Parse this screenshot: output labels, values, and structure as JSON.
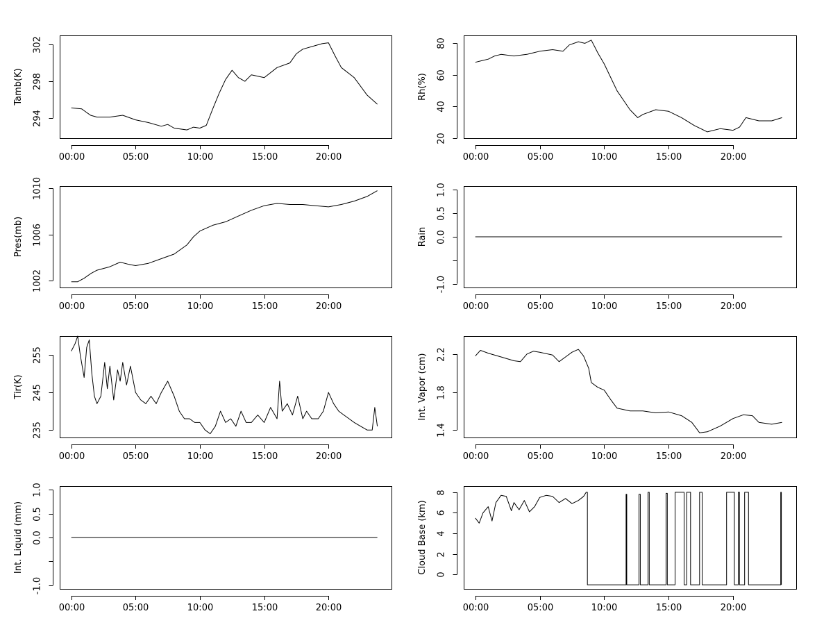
{
  "chart_data": [
    {
      "type": "line",
      "ylabel": "Tamb(K)",
      "xlabel": "",
      "x_ticks": [
        "00:00",
        "05:00",
        "10:00",
        "15:00",
        "20:00"
      ],
      "x_tick_hours": [
        0,
        5,
        10,
        15,
        20
      ],
      "xlim": [
        -0.9,
        24.9
      ],
      "ylim": [
        291.8,
        303
      ],
      "y_ticks": [
        294,
        298,
        302
      ],
      "y_tick_labels": [
        "294",
        "298",
        "302"
      ],
      "series": [
        {
          "name": "Tamb",
          "x": [
            0,
            0.8,
            1,
            1.5,
            2,
            3,
            4,
            5,
            6,
            7,
            7.5,
            8,
            9,
            9.5,
            10,
            10.5,
            11,
            11.5,
            12,
            12.5,
            13,
            13.5,
            14,
            15,
            16,
            17,
            17.5,
            18,
            19,
            19.5,
            20,
            20.5,
            21,
            22,
            23,
            23.8
          ],
          "y": [
            295.1,
            295.0,
            294.8,
            294.3,
            294.1,
            294.1,
            294.3,
            293.8,
            293.5,
            293.1,
            293.3,
            292.9,
            292.7,
            293.0,
            292.9,
            293.2,
            295.0,
            296.7,
            298.2,
            299.2,
            298.4,
            298.0,
            298.7,
            298.4,
            299.5,
            300.0,
            301.0,
            301.5,
            301.9,
            302.1,
            302.2,
            300.8,
            299.5,
            298.4,
            296.5,
            295.5
          ]
        }
      ]
    },
    {
      "type": "line",
      "ylabel": "Rh(%)",
      "xlabel": "",
      "x_ticks": [
        "00:00",
        "05:00",
        "10:00",
        "15:00",
        "20:00"
      ],
      "x_tick_hours": [
        0,
        5,
        10,
        15,
        20
      ],
      "xlim": [
        -0.9,
        24.9
      ],
      "ylim": [
        20,
        85
      ],
      "y_ticks": [
        20,
        40,
        60,
        80
      ],
      "y_tick_labels": [
        "20",
        "40",
        "60",
        "80"
      ],
      "series": [
        {
          "name": "Rh",
          "x": [
            0,
            0.5,
            1,
            1.5,
            2,
            3,
            4,
            5,
            6,
            6.8,
            7.3,
            8,
            8.5,
            9,
            9.5,
            10,
            11,
            12,
            12.6,
            13,
            14,
            15,
            16,
            17,
            18,
            19,
            20,
            20.5,
            21,
            22,
            23,
            23.8
          ],
          "y": [
            68,
            69,
            70,
            72,
            73,
            72,
            73,
            75,
            76,
            75,
            79,
            81,
            80,
            82,
            74,
            67,
            50,
            38,
            33,
            35,
            38,
            37,
            33,
            28,
            24,
            26,
            25,
            27,
            33,
            31,
            31,
            33
          ]
        }
      ]
    },
    {
      "type": "line",
      "ylabel": "Pres(mb)",
      "xlabel": "",
      "x_ticks": [
        "00:00",
        "05:00",
        "10:00",
        "15:00",
        "20:00"
      ],
      "x_tick_hours": [
        0,
        5,
        10,
        15,
        20
      ],
      "xlim": [
        -0.9,
        24.9
      ],
      "ylim": [
        1001.4,
        1010.2
      ],
      "y_ticks": [
        1002,
        1006,
        1010
      ],
      "y_tick_labels": [
        "1002",
        "1006",
        "1010"
      ],
      "series": [
        {
          "name": "Pres",
          "x": [
            0,
            0.5,
            1,
            1.5,
            2,
            3,
            3.8,
            4.5,
            5,
            6,
            7,
            8,
            9,
            9.5,
            10,
            11,
            12,
            13,
            14,
            15,
            16,
            17,
            18,
            19,
            20,
            21,
            22,
            23,
            23.8
          ],
          "y": [
            1001.9,
            1001.9,
            1002.2,
            1002.6,
            1002.9,
            1003.2,
            1003.6,
            1003.4,
            1003.3,
            1003.5,
            1003.9,
            1004.3,
            1005.1,
            1005.8,
            1006.3,
            1006.8,
            1007.1,
            1007.6,
            1008.1,
            1008.5,
            1008.7,
            1008.6,
            1008.6,
            1008.5,
            1008.4,
            1008.6,
            1008.9,
            1009.3,
            1009.8
          ]
        }
      ]
    },
    {
      "type": "line",
      "ylabel": "Rain",
      "xlabel": "",
      "x_ticks": [
        "00:00",
        "05:00",
        "10:00",
        "15:00",
        "20:00"
      ],
      "x_tick_hours": [
        0,
        5,
        10,
        15,
        20
      ],
      "xlim": [
        -0.9,
        24.9
      ],
      "ylim": [
        -1.08,
        1.08
      ],
      "y_ticks": [
        -1.0,
        -0.5,
        0.0,
        0.5,
        1.0
      ],
      "y_tick_labels": [
        "-1.0",
        "",
        "0.0",
        "0.5",
        "1.0"
      ],
      "series": [
        {
          "name": "Rain",
          "x": [
            0,
            23.8
          ],
          "y": [
            0,
            0
          ]
        }
      ]
    },
    {
      "type": "line",
      "ylabel": "Tir(K)",
      "xlabel": "",
      "x_ticks": [
        "00:00",
        "05:00",
        "10:00",
        "15:00",
        "20:00"
      ],
      "x_tick_hours": [
        0,
        5,
        10,
        15,
        20
      ],
      "xlim": [
        -0.9,
        24.9
      ],
      "ylim": [
        233,
        260
      ],
      "y_ticks": [
        235,
        245,
        255
      ],
      "y_tick_labels": [
        "235",
        "245",
        "255"
      ],
      "series": [
        {
          "name": "Tir",
          "x": [
            0,
            0.3,
            0.5,
            0.7,
            1,
            1.2,
            1.4,
            1.6,
            1.8,
            2,
            2.3,
            2.6,
            2.8,
            3,
            3.3,
            3.6,
            3.8,
            4,
            4.3,
            4.6,
            5,
            5.4,
            5.8,
            6.2,
            6.6,
            7,
            7.5,
            8,
            8.4,
            8.8,
            9.2,
            9.6,
            10,
            10.4,
            10.8,
            11.2,
            11.6,
            12,
            12.4,
            12.8,
            13.2,
            13.6,
            14,
            14.5,
            15,
            15.5,
            16,
            16.2,
            16.4,
            16.8,
            17.2,
            17.6,
            18,
            18.3,
            18.7,
            19.2,
            19.6,
            20,
            20.4,
            20.8,
            21.2,
            21.6,
            22,
            22.5,
            23,
            23.4,
            23.6,
            23.8
          ],
          "y": [
            256,
            258,
            260,
            255,
            249,
            257,
            259,
            250,
            244,
            242,
            244,
            253,
            246,
            252,
            243,
            251,
            248,
            253,
            247,
            252,
            245,
            243,
            242,
            244,
            242,
            245,
            248,
            244,
            240,
            238,
            238,
            237,
            237,
            235,
            234,
            236,
            240,
            237,
            238,
            236,
            240,
            237,
            237,
            239,
            237,
            241,
            238,
            248,
            240,
            242,
            239,
            244,
            238,
            240,
            238,
            238,
            240,
            245,
            242,
            240,
            239,
            238,
            237,
            236,
            235,
            235,
            241,
            236
          ]
        }
      ]
    },
    {
      "type": "line",
      "ylabel": "Int. Vapor (cm)",
      "xlabel": "",
      "x_ticks": [
        "00:00",
        "05:00",
        "10:00",
        "15:00",
        "20:00"
      ],
      "x_tick_hours": [
        0,
        5,
        10,
        15,
        20
      ],
      "xlim": [
        -0.9,
        24.9
      ],
      "ylim": [
        1.32,
        2.39
      ],
      "y_ticks": [
        1.4,
        1.8,
        2.2
      ],
      "y_tick_labels": [
        "1.4",
        "1.8",
        "2.2"
      ],
      "series": [
        {
          "name": "Int. Vapor",
          "x": [
            0,
            0.4,
            1,
            2,
            3,
            3.5,
            4,
            4.5,
            5,
            6,
            6.5,
            7,
            7.5,
            8,
            8.4,
            8.8,
            9,
            9.5,
            10,
            10.5,
            11,
            12,
            13,
            14,
            15,
            16,
            16.8,
            17.4,
            18,
            19,
            20,
            20.8,
            21.5,
            22,
            23,
            23.8
          ],
          "y": [
            2.18,
            2.24,
            2.21,
            2.17,
            2.13,
            2.12,
            2.2,
            2.23,
            2.22,
            2.19,
            2.12,
            2.17,
            2.22,
            2.25,
            2.18,
            2.05,
            1.9,
            1.85,
            1.82,
            1.72,
            1.63,
            1.6,
            1.6,
            1.58,
            1.59,
            1.55,
            1.48,
            1.37,
            1.38,
            1.44,
            1.52,
            1.56,
            1.55,
            1.48,
            1.46,
            1.48
          ]
        }
      ]
    },
    {
      "type": "line",
      "ylabel": "Int. Liquid (mm)",
      "xlabel": "",
      "x_ticks": [
        "00:00",
        "05:00",
        "10:00",
        "15:00",
        "20:00"
      ],
      "x_tick_hours": [
        0,
        5,
        10,
        15,
        20
      ],
      "xlim": [
        -0.9,
        24.9
      ],
      "ylim": [
        -1.08,
        1.08
      ],
      "y_ticks": [
        -1.0,
        -0.5,
        0.0,
        0.5,
        1.0
      ],
      "y_tick_labels": [
        "-1.0",
        "",
        "0.0",
        "0.5",
        "1.0"
      ],
      "series": [
        {
          "name": "Int. Liquid",
          "x": [
            0,
            23.8
          ],
          "y": [
            0,
            0
          ]
        }
      ]
    },
    {
      "type": "line",
      "ylabel": "Cloud Base (km)",
      "xlabel": "",
      "x_ticks": [
        "00:00",
        "05:00",
        "10:00",
        "15:00",
        "20:00"
      ],
      "x_tick_hours": [
        0,
        5,
        10,
        15,
        20
      ],
      "xlim": [
        -0.9,
        24.9
      ],
      "ylim": [
        -1.4,
        8.6
      ],
      "y_ticks": [
        0,
        2,
        4,
        6,
        8
      ],
      "y_tick_labels": [
        "0",
        "2",
        "4",
        "6",
        "8"
      ],
      "series": [
        {
          "name": "Cloud Base",
          "x": [
            0,
            0.3,
            0.6,
            1,
            1.3,
            1.6,
            2,
            2.4,
            2.8,
            3,
            3.4,
            3.8,
            4.2,
            4.6,
            5,
            5.5,
            6,
            6.5,
            7,
            7.5,
            8,
            8.4,
            8.6,
            8.7,
            8.7,
            11.7,
            11.7,
            11.75,
            11.75,
            12.7,
            12.7,
            12.8,
            12.8,
            13.4,
            13.4,
            13.5,
            13.5,
            14.8,
            14.8,
            14.9,
            14.9,
            15.5,
            15.5,
            16.2,
            16.2,
            16.4,
            16.4,
            16.7,
            16.7,
            17.4,
            17.4,
            17.6,
            17.6,
            19.5,
            19.5,
            20.1,
            20.1,
            20.4,
            20.4,
            20.5,
            20.5,
            20.9,
            20.9,
            21.2,
            21.2,
            23.7,
            23.7,
            23.75,
            23.75
          ],
          "y": [
            5.5,
            5.0,
            6.0,
            6.6,
            5.2,
            7.0,
            7.7,
            7.6,
            6.2,
            7.0,
            6.3,
            7.2,
            6.1,
            6.6,
            7.5,
            7.7,
            7.6,
            7.0,
            7.4,
            6.9,
            7.2,
            7.6,
            8.0,
            8.0,
            -1,
            -1,
            7.8,
            7.8,
            -1,
            -1,
            7.8,
            7.8,
            -1,
            -1,
            8.0,
            8.0,
            -1,
            -1,
            7.9,
            7.9,
            -1,
            -1,
            8.0,
            8.0,
            -1,
            -1,
            8.0,
            8.0,
            -1,
            -1,
            8.0,
            8.0,
            -1,
            -1,
            8.0,
            8.0,
            -1,
            -1,
            8.0,
            8.0,
            -1,
            -1,
            8.0,
            8.0,
            -1,
            -1,
            8.0,
            8.0,
            -1
          ]
        }
      ]
    }
  ]
}
